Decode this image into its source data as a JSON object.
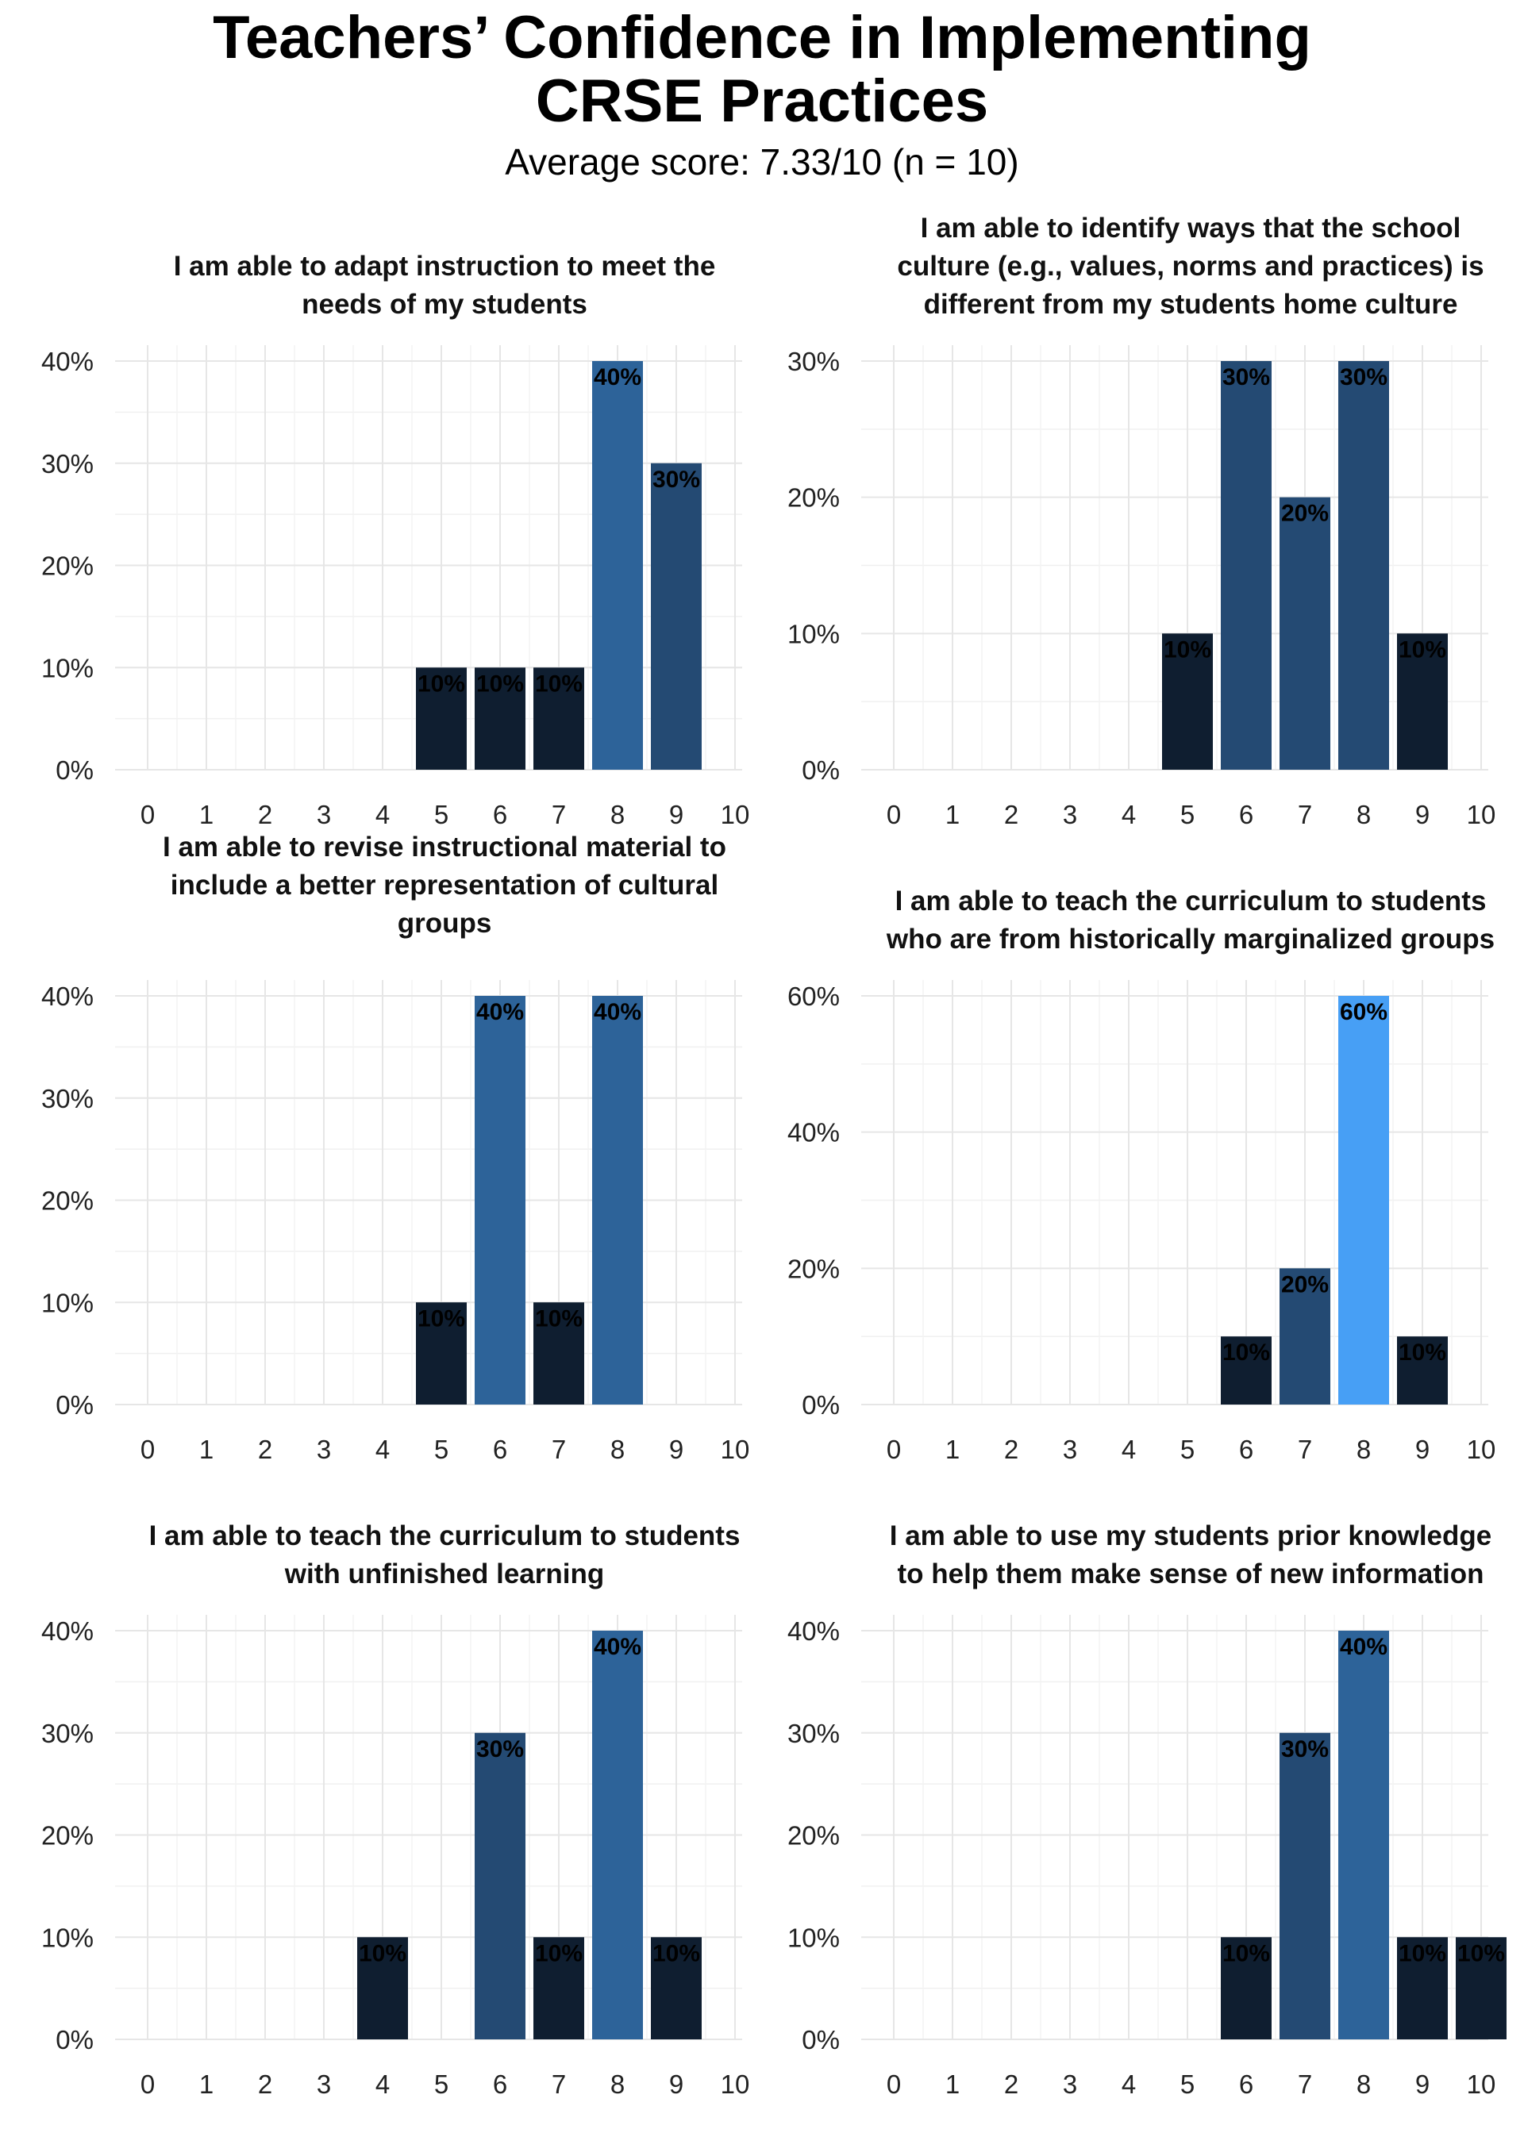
{
  "title_line1": "Teachers’ Confidence in Implementing",
  "title_line2": "CRSE Practices",
  "subtitle": "Average score: 7.33/10 (n = 10)",
  "colors": {
    "low": "#0f1e30",
    "mid": "#244a73",
    "high": "#2d6399",
    "peak": "#479ff5",
    "grid": "#e6e6e6"
  },
  "chart_data": [
    {
      "type": "bar",
      "title": "I am able to adapt instruction to meet the needs of my students",
      "title_lines": [
        "I am able to adapt instruction to meet the",
        "needs of my students"
      ],
      "x": [
        5,
        6,
        7,
        8,
        9
      ],
      "values": [
        10,
        10,
        10,
        40,
        30
      ],
      "labels": [
        "10%",
        "10%",
        "10%",
        "40%",
        "30%"
      ],
      "xlim": [
        0,
        10
      ],
      "ylim": [
        0,
        40
      ],
      "yticks": [
        0,
        10,
        20,
        30,
        40
      ],
      "ytick_labels": [
        "0%",
        "10%",
        "20%",
        "30%",
        "40%"
      ],
      "xtick_labels": [
        "0",
        "1",
        "2",
        "3",
        "4",
        "5",
        "6",
        "7",
        "8",
        "9",
        "10"
      ]
    },
    {
      "type": "bar",
      "title": "I am able to identify ways that the school culture (e.g., values, norms and practices) is different from my students home culture",
      "title_lines": [
        "I am able to identify ways that the school",
        "culture (e.g., values, norms and practices) is",
        "different from my students home culture"
      ],
      "x": [
        5,
        6,
        7,
        8,
        9
      ],
      "values": [
        10,
        30,
        20,
        30,
        10
      ],
      "labels": [
        "10%",
        "30%",
        "20%",
        "30%",
        "10%"
      ],
      "xlim": [
        0,
        10
      ],
      "ylim": [
        0,
        30
      ],
      "yticks": [
        0,
        10,
        20,
        30
      ],
      "ytick_labels": [
        "0%",
        "10%",
        "20%",
        "30%"
      ],
      "xtick_labels": [
        "0",
        "1",
        "2",
        "3",
        "4",
        "5",
        "6",
        "7",
        "8",
        "9",
        "10"
      ]
    },
    {
      "type": "bar",
      "title": "I am able to revise instructional material to include a better representation of cultural groups",
      "title_lines": [
        "I am able to revise instructional material to",
        "include a better representation of cultural",
        "groups"
      ],
      "x": [
        5,
        6,
        7,
        8
      ],
      "values": [
        10,
        40,
        10,
        40
      ],
      "labels": [
        "10%",
        "40%",
        "10%",
        "40%"
      ],
      "xlim": [
        0,
        10
      ],
      "ylim": [
        0,
        40
      ],
      "yticks": [
        0,
        10,
        20,
        30,
        40
      ],
      "ytick_labels": [
        "0%",
        "10%",
        "20%",
        "30%",
        "40%"
      ],
      "xtick_labels": [
        "0",
        "1",
        "2",
        "3",
        "4",
        "5",
        "6",
        "7",
        "8",
        "9",
        "10"
      ]
    },
    {
      "type": "bar",
      "title": "I am able to teach the curriculum to students who are from historically marginalized groups",
      "title_lines": [
        "I am able to teach the curriculum to students",
        "who are from historically marginalized groups"
      ],
      "x": [
        6,
        7,
        8,
        9
      ],
      "values": [
        10,
        20,
        60,
        10
      ],
      "labels": [
        "10%",
        "20%",
        "60%",
        "10%"
      ],
      "xlim": [
        0,
        10
      ],
      "ylim": [
        0,
        60
      ],
      "yticks": [
        0,
        20,
        40,
        60
      ],
      "ytick_labels": [
        "0%",
        "20%",
        "40%",
        "60%"
      ],
      "xtick_labels": [
        "0",
        "1",
        "2",
        "3",
        "4",
        "5",
        "6",
        "7",
        "8",
        "9",
        "10"
      ]
    },
    {
      "type": "bar",
      "title": "I am able to teach the curriculum to students with unfinished learning",
      "title_lines": [
        "I am able to teach the curriculum to students",
        "with unfinished learning"
      ],
      "x": [
        4,
        6,
        7,
        8,
        9
      ],
      "values": [
        10,
        30,
        10,
        40,
        10
      ],
      "labels": [
        "10%",
        "30%",
        "10%",
        "40%",
        "10%"
      ],
      "xlim": [
        0,
        10
      ],
      "ylim": [
        0,
        40
      ],
      "yticks": [
        0,
        10,
        20,
        30,
        40
      ],
      "ytick_labels": [
        "0%",
        "10%",
        "20%",
        "30%",
        "40%"
      ],
      "xtick_labels": [
        "0",
        "1",
        "2",
        "3",
        "4",
        "5",
        "6",
        "7",
        "8",
        "9",
        "10"
      ]
    },
    {
      "type": "bar",
      "title": "I am able to use my students prior knowledge to help them make sense of new information",
      "title_lines": [
        "I am able to use my students prior knowledge",
        "to help them make sense of new information"
      ],
      "x": [
        6,
        7,
        8,
        9,
        10
      ],
      "values": [
        10,
        30,
        40,
        10,
        10
      ],
      "labels": [
        "10%",
        "30%",
        "40%",
        "10%",
        "10%"
      ],
      "xlim": [
        0,
        10
      ],
      "ylim": [
        0,
        40
      ],
      "yticks": [
        0,
        10,
        20,
        30,
        40
      ],
      "ytick_labels": [
        "0%",
        "10%",
        "20%",
        "30%",
        "40%"
      ],
      "xtick_labels": [
        "0",
        "1",
        "2",
        "3",
        "4",
        "5",
        "6",
        "7",
        "8",
        "9",
        "10"
      ]
    }
  ]
}
